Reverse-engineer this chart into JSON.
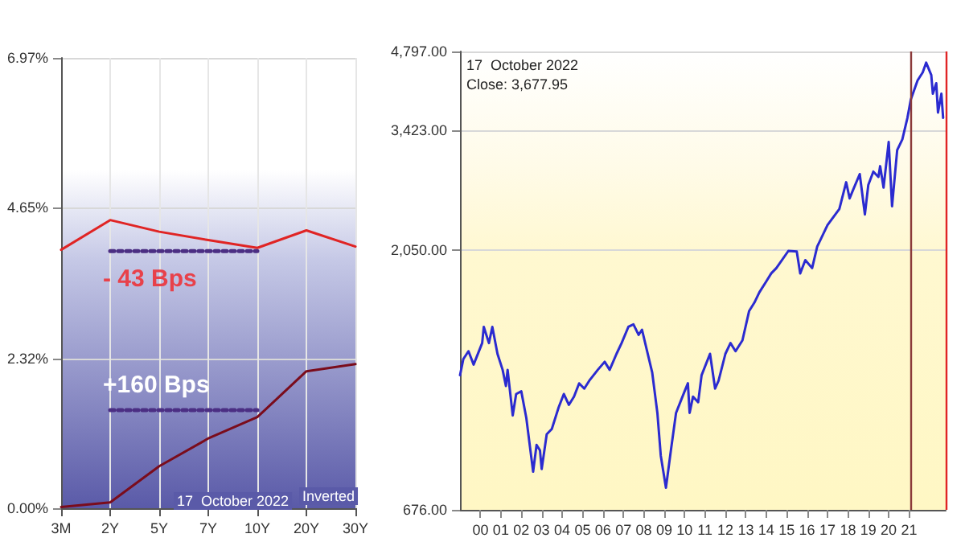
{
  "chart_data": [
    {
      "type": "line",
      "categories": [
        "3M",
        "2Y",
        "5Y",
        "7Y",
        "10Y",
        "20Y",
        "30Y"
      ],
      "series": [
        {
          "color": "#e02424",
          "values": [
            4.0,
            4.46,
            4.28,
            4.15,
            4.03,
            4.3,
            4.05
          ]
        },
        {
          "color": "#7a0c1c",
          "values": [
            0.02,
            0.09,
            0.65,
            1.08,
            1.41,
            2.12,
            2.23
          ]
        },
        {
          "color": "#4b2e83",
          "line_style": "dotted",
          "values": [
            null,
            3.98,
            3.98,
            3.98,
            3.98,
            null,
            null
          ]
        },
        {
          "color": "#4b2e83",
          "line_style": "dotted",
          "values": [
            null,
            1.52,
            1.52,
            1.52,
            1.52,
            null,
            null
          ]
        }
      ],
      "ylim": [
        0,
        6.97
      ],
      "yticks": [
        {
          "value": 0,
          "label": "0.00%"
        },
        {
          "value": 2.32,
          "label": "2.32%"
        },
        {
          "value": 4.65,
          "label": "4.65%"
        },
        {
          "value": 6.97,
          "label": "6.97%"
        }
      ],
      "grid": true,
      "marker": "none",
      "line_style": "solid",
      "annotations": [
        "- 43 Bps",
        "+160 Bps",
        "17  October 2022",
        "Inverted"
      ]
    },
    {
      "type": "line",
      "log": "y",
      "x": [
        "1999-01",
        "1999-03",
        "1999-06",
        "1999-09",
        "2000-02",
        "2000-03",
        "2000-06",
        "2000-08",
        "2000-11",
        "2001-02",
        "2001-04",
        "2001-05",
        "2001-08",
        "2001-10",
        "2002-01",
        "2002-04",
        "2002-06",
        "2002-08",
        "2002-10",
        "2002-12",
        "2003-01",
        "2003-04",
        "2003-07",
        "2003-11",
        "2004-02",
        "2004-05",
        "2004-08",
        "2004-11",
        "2005-02",
        "2005-05",
        "2005-10",
        "2006-02",
        "2006-05",
        "2006-09",
        "2006-12",
        "2007-04",
        "2007-07",
        "2007-10",
        "2007-12",
        "2008-03",
        "2008-06",
        "2008-09",
        "2008-11",
        "2009-02",
        "2009-05",
        "2009-08",
        "2010-01",
        "2010-03",
        "2010-04",
        "2010-06",
        "2010-09",
        "2010-11",
        "2011-04",
        "2011-07",
        "2011-09",
        "2012-01",
        "2012-04",
        "2012-07",
        "2012-11",
        "2013-03",
        "2013-06",
        "2013-09",
        "2014-01",
        "2014-04",
        "2014-07",
        "2015-02",
        "2015-07",
        "2015-09",
        "2015-12",
        "2016-04",
        "2016-07",
        "2017-01",
        "2017-08",
        "2017-12",
        "2018-02",
        "2018-04",
        "2018-08",
        "2018-11",
        "2019-01",
        "2019-04",
        "2019-07",
        "2019-08",
        "2019-10",
        "2020-01",
        "2020-03",
        "2020-06",
        "2020-09",
        "2020-12",
        "2021-02",
        "2021-06",
        "2021-09",
        "2021-11",
        "2022-02",
        "2022-03",
        "2022-05",
        "2022-06",
        "2022-08",
        "2022-09"
      ],
      "series": [
        {
          "color": "#2b2bd0",
          "values": [
            1202,
            1288,
            1332,
            1258,
            1379,
            1478,
            1379,
            1478,
            1317,
            1230,
            1148,
            1230,
            1012,
            1109,
            1122,
            1001,
            892,
            796,
            892,
            872,
            805,
            934,
            955,
            1048,
            1109,
            1059,
            1097,
            1161,
            1135,
            1174,
            1230,
            1273,
            1230,
            1317,
            1379,
            1478,
            1494,
            1428,
            1460,
            1332,
            1215,
            1023,
            852,
            743,
            872,
            1023,
            1122,
            1161,
            1023,
            1097,
            1071,
            1202,
            1317,
            1135,
            1174,
            1317,
            1379,
            1332,
            1395,
            1582,
            1638,
            1714,
            1795,
            1858,
            1900,
            2045,
            2040,
            1858,
            1966,
            1900,
            2083,
            2284,
            2446,
            2743,
            2560,
            2650,
            2840,
            2390,
            2711,
            2870,
            2806,
            2938,
            2680,
            3258,
            2475,
            3147,
            3293,
            3612,
            3911,
            4239,
            4387,
            4573,
            4336,
            4004,
            4189,
            3694,
            4004,
            3612
          ]
        }
      ],
      "xlim": [
        "1999-01",
        "2022-10-17"
      ],
      "xticks": [
        {
          "value": "2000",
          "label": "00"
        },
        {
          "value": "2001",
          "label": "01"
        },
        {
          "value": "2002",
          "label": "02"
        },
        {
          "value": "2003",
          "label": "03"
        },
        {
          "value": "2004",
          "label": "04"
        },
        {
          "value": "2005",
          "label": "05"
        },
        {
          "value": "2006",
          "label": "06"
        },
        {
          "value": "2007",
          "label": "07"
        },
        {
          "value": "2008",
          "label": "08"
        },
        {
          "value": "2009",
          "label": "09"
        },
        {
          "value": "2010",
          "label": "10"
        },
        {
          "value": "2011",
          "label": "11"
        },
        {
          "value": "2012",
          "label": "12"
        },
        {
          "value": "2013",
          "label": "13"
        },
        {
          "value": "2014",
          "label": "14"
        },
        {
          "value": "2015",
          "label": "15"
        },
        {
          "value": "2016",
          "label": "16"
        },
        {
          "value": "2017",
          "label": "17"
        },
        {
          "value": "2018",
          "label": "18"
        },
        {
          "value": "2019",
          "label": "19"
        },
        {
          "value": "2020",
          "label": "20"
        },
        {
          "value": "2021",
          "label": "21"
        }
      ],
      "ylim": [
        676,
        4797
      ],
      "yticks": [
        {
          "value": 676,
          "label": "676.00"
        },
        {
          "value": 2050,
          "label": "2,050.00"
        },
        {
          "value": 3423,
          "label": "3,423.00"
        },
        {
          "value": 4797,
          "label": "4,797.00"
        }
      ],
      "grid": "y",
      "marker": "none",
      "line_style": "solid",
      "ref_lines": [
        {
          "axis": "x",
          "value": "2021-02",
          "color": "#8b3a3a"
        },
        {
          "axis": "x",
          "value": "2022-10-17",
          "color": "#e02424"
        }
      ],
      "annotations": [
        "17  October 2022",
        "Close: 3,677.95"
      ]
    }
  ]
}
